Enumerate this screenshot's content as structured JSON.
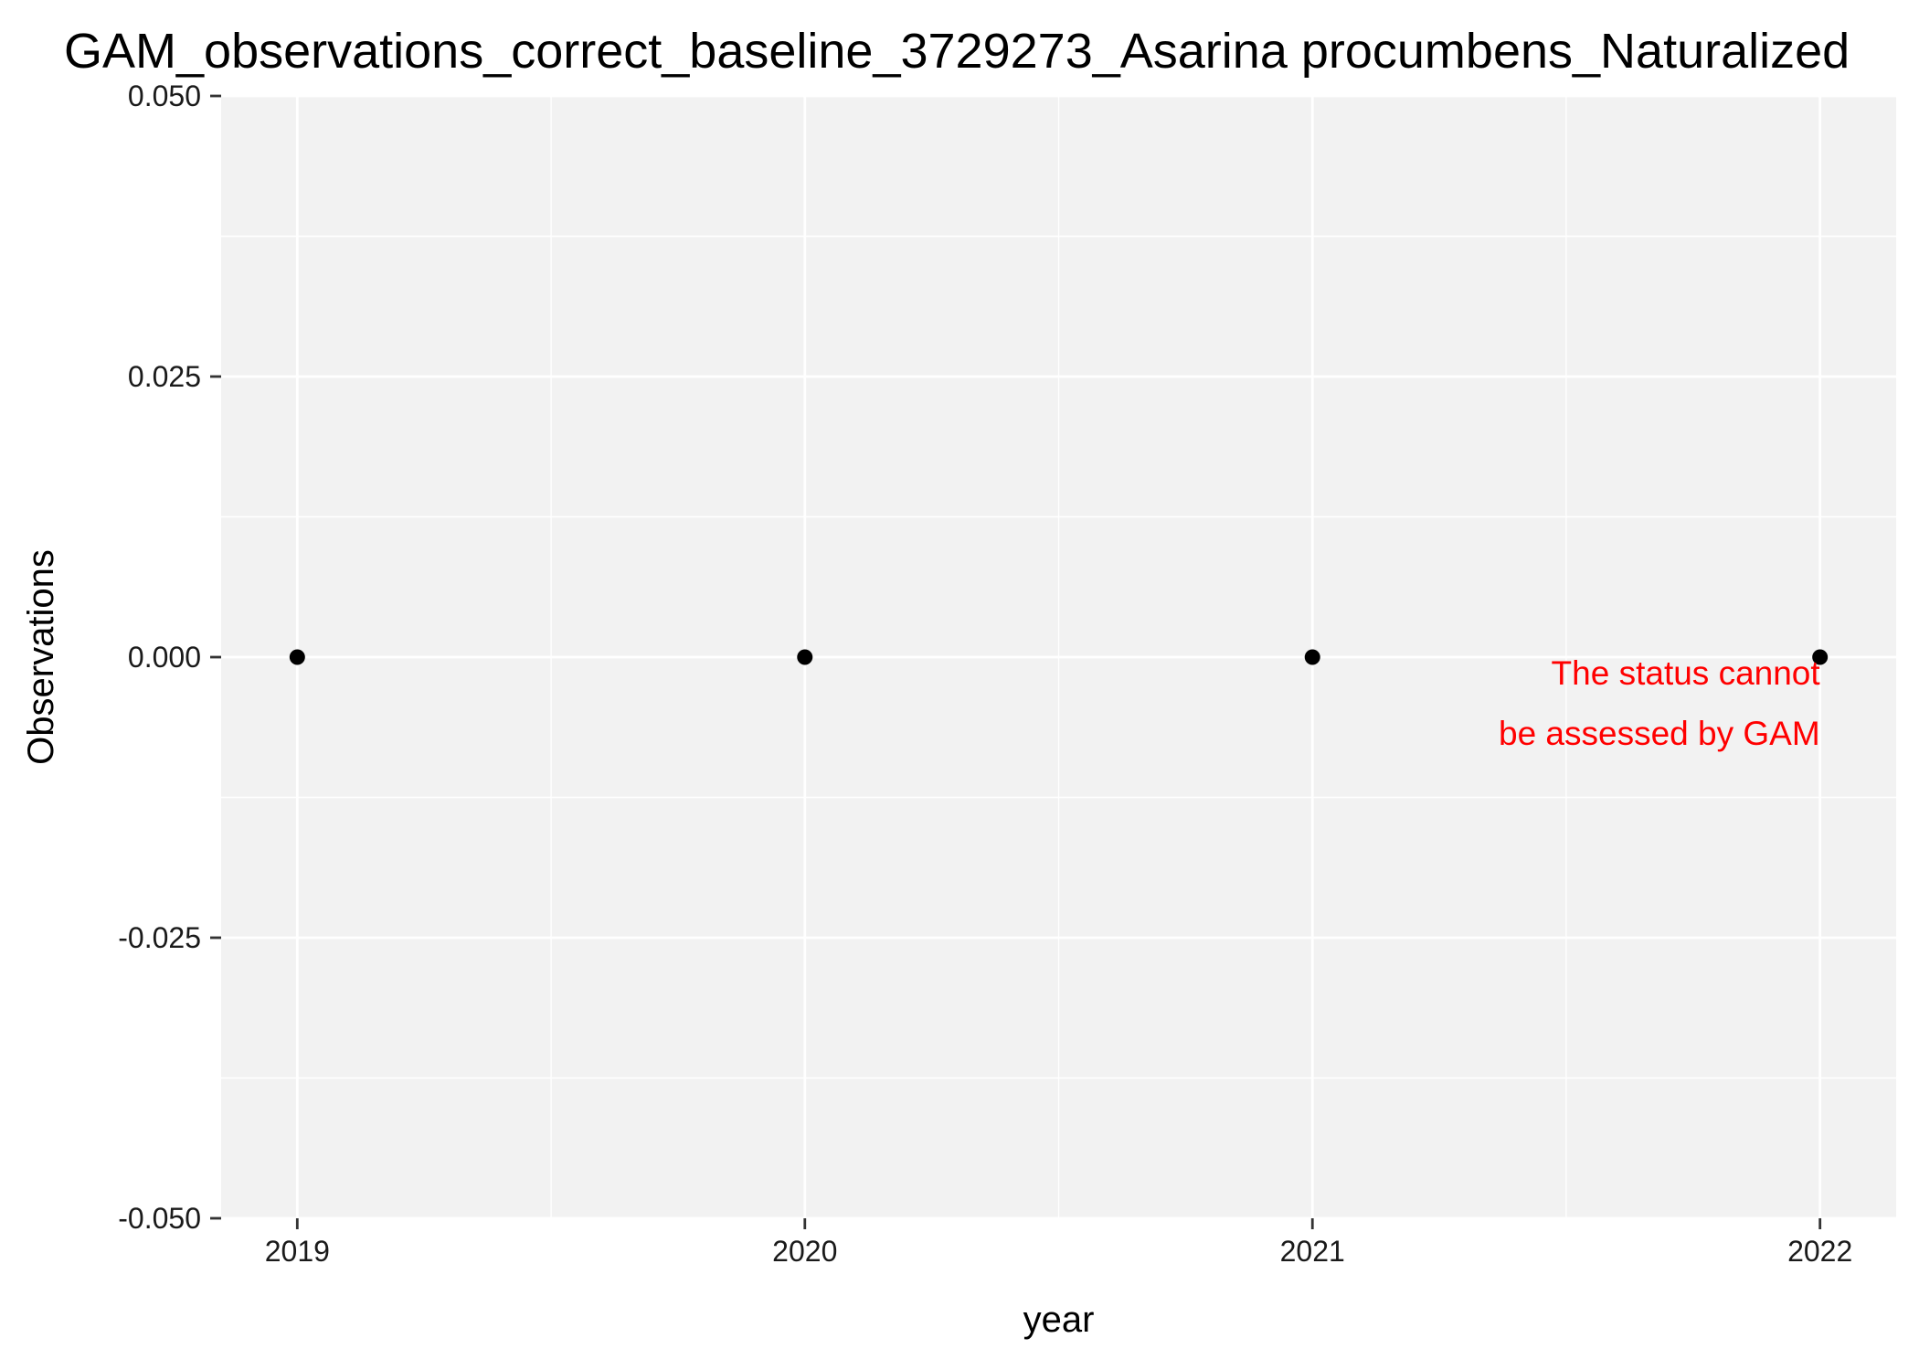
{
  "chart_data": {
    "type": "scatter",
    "title": "GAM_observations_correct_baseline_3729273_Asarina procumbens_Naturalized",
    "xlabel": "year",
    "ylabel": "Observations",
    "x": [
      2019,
      2020,
      2021,
      2022
    ],
    "series": [
      {
        "values": [
          0,
          0,
          0,
          0
        ]
      }
    ],
    "xlim": [
      2018.85,
      2022.15
    ],
    "ylim": [
      -0.05,
      0.05
    ],
    "x_ticks": [
      2019,
      2020,
      2021,
      2022
    ],
    "x_tick_labels": [
      "2019",
      "2020",
      "2021",
      "2022"
    ],
    "y_ticks": [
      -0.05,
      -0.025,
      0,
      0.025,
      0.05
    ],
    "y_tick_labels": [
      "-0.050",
      "-0.025",
      "0.000",
      "0.025",
      "0.050"
    ],
    "grid": true,
    "legend": "none",
    "annotation": {
      "lines": [
        "The status cannot",
        "be assessed by GAM"
      ],
      "x": 2022,
      "y": 0,
      "color": "#ff0000"
    },
    "colors": {
      "panel": "#f2f2f2",
      "grid": "#ffffff",
      "points": "#000000"
    }
  }
}
